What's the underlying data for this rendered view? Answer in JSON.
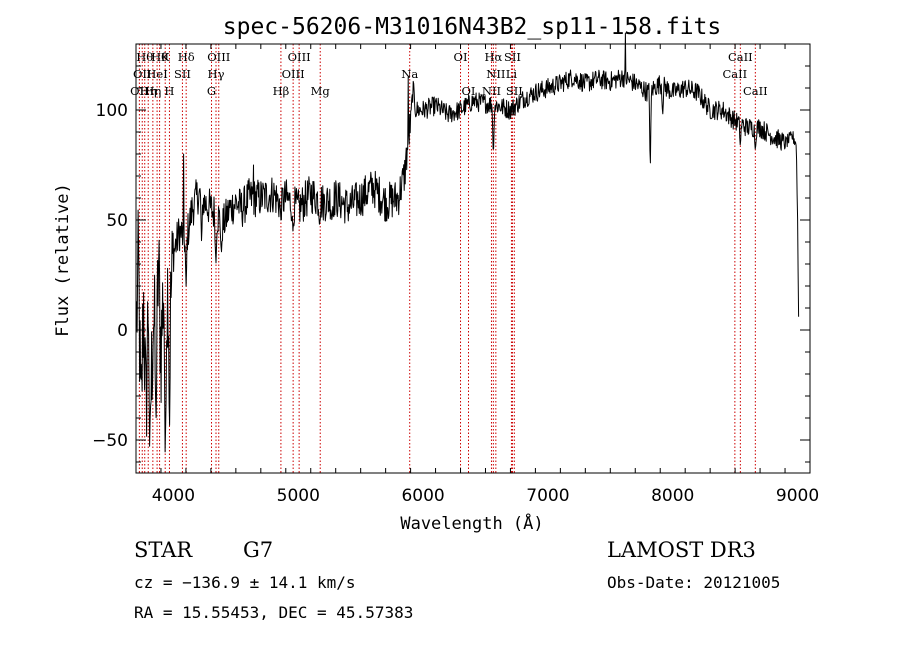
{
  "chart_data": {
    "type": "line",
    "title": "spec-56206-M31016N43B2_sp11-158.fits",
    "xlabel": "Wavelength (Å)",
    "ylabel": "Flux (relative)",
    "xlim": [
      3700,
      9100
    ],
    "ylim": [
      -65,
      130
    ],
    "xticks": [
      4000,
      5000,
      6000,
      7000,
      8000,
      9000
    ],
    "yticks": [
      -50,
      0,
      50,
      100
    ],
    "series": [
      {
        "name": "flux",
        "anchors": [
          [
            3700,
            -5
          ],
          [
            3720,
            30
          ],
          [
            3740,
            -45
          ],
          [
            3760,
            15
          ],
          [
            3780,
            -40
          ],
          [
            3800,
            20
          ],
          [
            3820,
            -30
          ],
          [
            3840,
            10
          ],
          [
            3860,
            -20
          ],
          [
            3880,
            30
          ],
          [
            3900,
            -10
          ],
          [
            3920,
            20
          ],
          [
            3940,
            5
          ],
          [
            3960,
            25
          ],
          [
            3980,
            15
          ],
          [
            4000,
            35
          ],
          [
            4050,
            45
          ],
          [
            4100,
            40
          ],
          [
            4150,
            55
          ],
          [
            4200,
            62
          ],
          [
            4250,
            58
          ],
          [
            4300,
            55
          ],
          [
            4350,
            52
          ],
          [
            4400,
            48
          ],
          [
            4450,
            55
          ],
          [
            4500,
            58
          ],
          [
            4550,
            55
          ],
          [
            4600,
            60
          ],
          [
            4700,
            60
          ],
          [
            4800,
            62
          ],
          [
            4850,
            58
          ],
          [
            4900,
            60
          ],
          [
            5000,
            55
          ],
          [
            5100,
            62
          ],
          [
            5200,
            58
          ],
          [
            5300,
            60
          ],
          [
            5400,
            56
          ],
          [
            5500,
            60
          ],
          [
            5600,
            65
          ],
          [
            5700,
            58
          ],
          [
            5800,
            60
          ],
          [
            5850,
            70
          ],
          [
            5880,
            85
          ],
          [
            5900,
            95
          ],
          [
            5920,
            110
          ],
          [
            5940,
            100
          ],
          [
            6000,
            100
          ],
          [
            6100,
            102
          ],
          [
            6200,
            98
          ],
          [
            6300,
            100
          ],
          [
            6400,
            104
          ],
          [
            6500,
            103
          ],
          [
            6600,
            102
          ],
          [
            6700,
            100
          ],
          [
            6800,
            105
          ],
          [
            6900,
            108
          ],
          [
            7000,
            110
          ],
          [
            7100,
            112
          ],
          [
            7200,
            115
          ],
          [
            7300,
            112
          ],
          [
            7400,
            114
          ],
          [
            7500,
            113
          ],
          [
            7600,
            115
          ],
          [
            7700,
            112
          ],
          [
            7800,
            108
          ],
          [
            7900,
            112
          ],
          [
            8000,
            108
          ],
          [
            8100,
            110
          ],
          [
            8200,
            108
          ],
          [
            8300,
            100
          ],
          [
            8400,
            100
          ],
          [
            8500,
            95
          ],
          [
            8600,
            92
          ],
          [
            8700,
            92
          ],
          [
            8800,
            88
          ],
          [
            8900,
            85
          ],
          [
            8960,
            88
          ],
          [
            8990,
            85
          ],
          [
            9000,
            55
          ],
          [
            9010,
            0
          ]
        ],
        "dips": [
          [
            3934,
            -58
          ],
          [
            3968,
            -45
          ],
          [
            3860,
            -40
          ],
          [
            3810,
            -55
          ],
          [
            4101,
            20
          ],
          [
            4226,
            40
          ],
          [
            4340,
            30
          ],
          [
            4384,
            35
          ],
          [
            4861,
            50
          ],
          [
            4957,
            45
          ],
          [
            5170,
            48
          ],
          [
            5270,
            50
          ],
          [
            6563,
            80
          ],
          [
            7820,
            75
          ],
          [
            7920,
            98
          ],
          [
            8542,
            84
          ],
          [
            8662,
            82
          ]
        ],
        "spikes": [
          [
            7620,
            135
          ],
          [
            5880,
            115
          ],
          [
            4640,
            75
          ],
          [
            4080,
            80
          ]
        ]
      }
    ],
    "emission_lines": [
      {
        "wavelength": 3727,
        "label": "OII",
        "row": 3
      },
      {
        "wavelength": 3750,
        "label": "OII",
        "row": 2
      },
      {
        "wavelength": 3770,
        "label": "Hθ",
        "row": 1
      },
      {
        "wavelength": 3798,
        "label": "Hη",
        "row": 3
      },
      {
        "wavelength": 3835,
        "label": "Hη",
        "row": 3
      },
      {
        "wavelength": 3869,
        "label": "HeI",
        "row": 2
      },
      {
        "wavelength": 3889,
        "label": "Hθ",
        "row": 1
      },
      {
        "wavelength": 3934,
        "label": "K",
        "row": 1
      },
      {
        "wavelength": 3968,
        "label": "H",
        "row": 3
      },
      {
        "wavelength": 4072,
        "label": "SII",
        "row": 2
      },
      {
        "wavelength": 4102,
        "label": "Hδ",
        "row": 1
      },
      {
        "wavelength": 4305,
        "label": "G",
        "row": 3
      },
      {
        "wavelength": 4341,
        "label": "Hγ",
        "row": 2
      },
      {
        "wavelength": 4363,
        "label": "OIII",
        "row": 1
      },
      {
        "wavelength": 4861,
        "label": "Hβ",
        "row": 3
      },
      {
        "wavelength": 4959,
        "label": "OIII",
        "row": 2
      },
      {
        "wavelength": 5007,
        "label": "OIII",
        "row": 1
      },
      {
        "wavelength": 5176,
        "label": "Mg",
        "row": 3
      },
      {
        "wavelength": 5893,
        "label": "Na",
        "row": 2
      },
      {
        "wavelength": 6300,
        "label": "OI",
        "row": 1
      },
      {
        "wavelength": 6364,
        "label": "OI",
        "row": 3
      },
      {
        "wavelength": 6548,
        "label": "NII",
        "row": 3
      },
      {
        "wavelength": 6563,
        "label": "Hα",
        "row": 1
      },
      {
        "wavelength": 6583,
        "label": "NII",
        "row": 2
      },
      {
        "wavelength": 6708,
        "label": "Li",
        "row": 2
      },
      {
        "wavelength": 6716,
        "label": "SII",
        "row": 1
      },
      {
        "wavelength": 6731,
        "label": "SII",
        "row": 3
      },
      {
        "wavelength": 8498,
        "label": "CaII",
        "row": 2
      },
      {
        "wavelength": 8542,
        "label": "CaII",
        "row": 1
      },
      {
        "wavelength": 8662,
        "label": "CaII",
        "row": 3
      }
    ]
  },
  "info": {
    "object_class": "STAR",
    "subclass": "G7",
    "survey": "LAMOST DR3",
    "cz": "cz = −136.9 ± 14.1 km/s",
    "obs_date": "Obs-Date: 20121005",
    "coordinates": "RA =  15.55453, DEC =  45.57383"
  },
  "colors": {
    "axis": "#000000",
    "spectrum": "#000000",
    "emission_line": "#cc0000"
  }
}
